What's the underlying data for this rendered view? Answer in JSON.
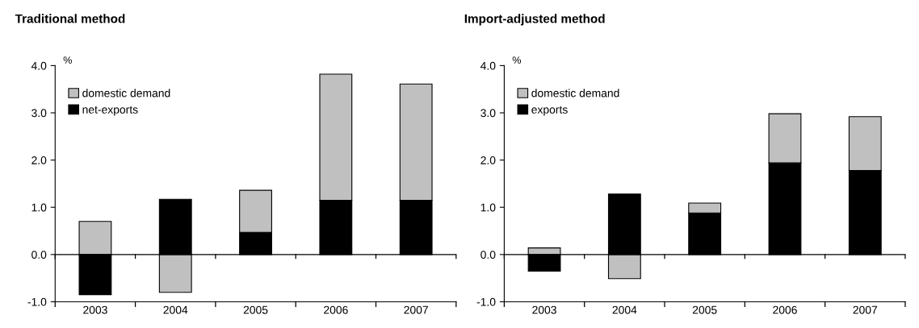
{
  "chart_data": [
    {
      "type": "bar",
      "title": "Traditional method",
      "ylabel": "%",
      "categories": [
        "2003",
        "2004",
        "2005",
        "2006",
        "2007"
      ],
      "stacked": true,
      "series": [
        {
          "name": "net-exports",
          "color": "#000000",
          "values": [
            -0.85,
            1.17,
            0.47,
            1.15,
            1.15
          ]
        },
        {
          "name": "domestic demand",
          "color": "#c0c0c0",
          "values": [
            0.7,
            -0.8,
            0.89,
            2.67,
            2.46
          ]
        }
      ],
      "ylim": [
        -1.0,
        4.0
      ],
      "yticks": [
        {
          "value": -1,
          "label": "-1.0"
        },
        {
          "value": 0,
          "label": "0.0"
        },
        {
          "value": 1,
          "label": "1.0"
        },
        {
          "value": 2,
          "label": "2.0"
        },
        {
          "value": 3,
          "label": "3.0"
        },
        {
          "value": 4,
          "label": "4.0"
        }
      ],
      "ref_lines": [
        {
          "axis": "y",
          "value": 0,
          "color": "#000000"
        }
      ],
      "grid": false,
      "legend": "top left"
    },
    {
      "type": "bar",
      "title": "Import-adjusted method",
      "ylabel": "%",
      "categories": [
        "2003",
        "2004",
        "2005",
        "2006",
        "2007"
      ],
      "stacked": true,
      "series": [
        {
          "name": "exports",
          "color": "#000000",
          "values": [
            -0.35,
            1.28,
            0.88,
            1.94,
            1.78
          ]
        },
        {
          "name": "domestic demand",
          "color": "#c0c0c0",
          "values": [
            0.14,
            -0.51,
            0.21,
            1.04,
            1.14
          ]
        }
      ],
      "ylim": [
        -1.0,
        4.0
      ],
      "yticks": [
        {
          "value": -1,
          "label": "-1.0"
        },
        {
          "value": 0,
          "label": "0.0"
        },
        {
          "value": 1,
          "label": "1.0"
        },
        {
          "value": 2,
          "label": "2.0"
        },
        {
          "value": 3,
          "label": "3.0"
        },
        {
          "value": 4,
          "label": "4.0"
        }
      ],
      "ref_lines": [
        {
          "axis": "y",
          "value": 0,
          "color": "#000000"
        }
      ],
      "grid": false,
      "legend": "top left"
    }
  ]
}
